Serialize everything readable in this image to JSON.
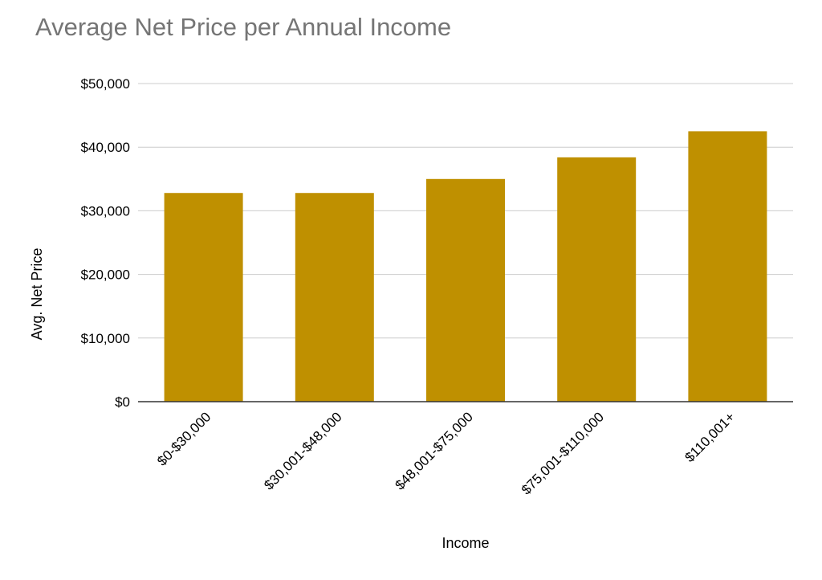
{
  "chart_data": {
    "type": "bar",
    "title": "Average Net Price per Annual Income",
    "xlabel": "Income",
    "ylabel": "Avg. Net Price",
    "categories": [
      "$0-$30,000",
      "$30,001-$48,000",
      "$48,001-$75,000",
      "$75,001-$110,000",
      "$110,001+"
    ],
    "values": [
      32800,
      32800,
      35000,
      38400,
      42500
    ],
    "ylim": [
      0,
      50000
    ],
    "yticks": [
      0,
      10000,
      20000,
      30000,
      40000,
      50000
    ],
    "ytick_labels": [
      "$0",
      "$10,000",
      "$20,000",
      "$30,000",
      "$40,000",
      "$50,000"
    ],
    "bar_color": "#BF9000",
    "gridlines": true,
    "legend": "none"
  }
}
